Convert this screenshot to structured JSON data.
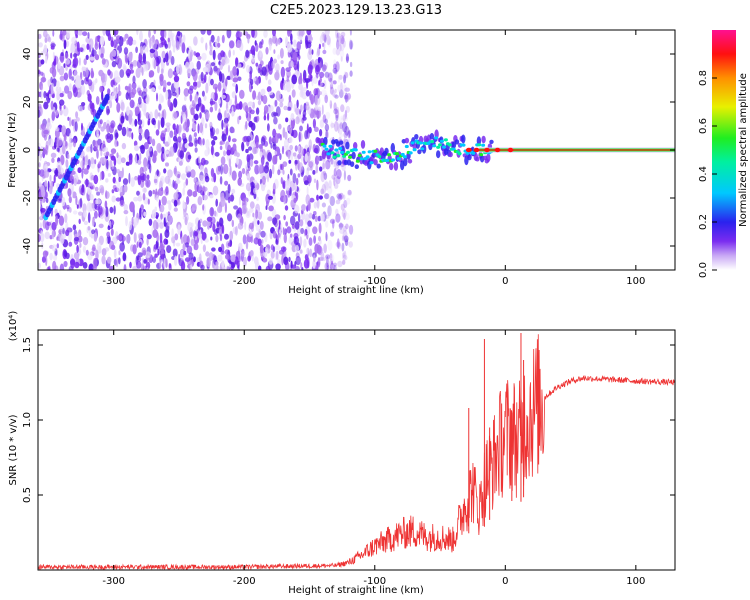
{
  "title": "C2E5.2023.129.13.23.G13",
  "chart_data": [
    {
      "type": "heatmap",
      "xlabel": "Height of straight line (km)",
      "ylabel": "Frequency (Hz)",
      "xlim": [
        -358,
        130
      ],
      "ylim": [
        -50,
        50
      ],
      "xticks": [
        -300,
        -200,
        -100,
        0,
        100
      ],
      "yticks": [
        -40,
        -20,
        0,
        20,
        40
      ],
      "colorbar": {
        "label": "Normalized spectral amplitude",
        "range": [
          0,
          1
        ],
        "ticks": [
          "0.0",
          "0.2",
          "0.4",
          "0.6",
          "0.8"
        ],
        "colormap": "rainbow (white/violet at 0, blue, cyan, green, yellow, orange, red, magenta at 1)"
      },
      "features": {
        "noise_region_x": [
          -358,
          -130
        ],
        "signal_trace": [
          {
            "x": -140,
            "y": 0
          },
          {
            "x": -120,
            "y": -2
          },
          {
            "x": -100,
            "y": -3
          },
          {
            "x": -80,
            "y": -2
          },
          {
            "x": -60,
            "y": 4
          },
          {
            "x": -40,
            "y": 2
          },
          {
            "x": -30,
            "y": -1
          },
          {
            "x": -20,
            "y": 0
          },
          {
            "x": 0,
            "y": 0
          },
          {
            "x": 130,
            "y": 0
          }
        ],
        "diagonal_streak": [
          {
            "x": -352,
            "y": -28
          },
          {
            "x": -305,
            "y": 22
          }
        ]
      }
    },
    {
      "type": "line",
      "xlabel": "Height of straight line (km)",
      "ylabel": "SNR (10 * v/v)",
      "yunit": "(x10⁴)",
      "xlim": [
        -358,
        130
      ],
      "ylim": [
        0,
        1.6
      ],
      "xticks": [
        -300,
        -200,
        -100,
        0,
        100
      ],
      "yticks": [
        0.5,
        1.0,
        1.5
      ],
      "ytick_labels": [
        "0.5",
        "1.0",
        "1.5"
      ],
      "color": "#ee3333",
      "x": [
        -358,
        -300,
        -200,
        -130,
        -120,
        -110,
        -100,
        -90,
        -80,
        -70,
        -60,
        -50,
        -40,
        -30,
        -25,
        -20,
        -15,
        -10,
        -5,
        0,
        5,
        10,
        15,
        20,
        30,
        40,
        50,
        60,
        80,
        100,
        130
      ],
      "y": [
        0.02,
        0.02,
        0.02,
        0.03,
        0.05,
        0.1,
        0.16,
        0.2,
        0.24,
        0.26,
        0.22,
        0.22,
        0.2,
        0.45,
        0.55,
        0.4,
        0.62,
        0.7,
        0.82,
        0.9,
        0.92,
        0.85,
        1.0,
        1.05,
        1.15,
        1.22,
        1.26,
        1.28,
        1.27,
        1.26,
        1.25
      ],
      "spikes": [
        {
          "x": -28,
          "y": 1.08
        },
        {
          "x": -16,
          "y": 1.54
        },
        {
          "x": -12,
          "y": 0.95
        },
        {
          "x": 5,
          "y": 1.05
        },
        {
          "x": 12,
          "y": 1.58
        },
        {
          "x": 14,
          "y": 1.4
        }
      ]
    }
  ]
}
